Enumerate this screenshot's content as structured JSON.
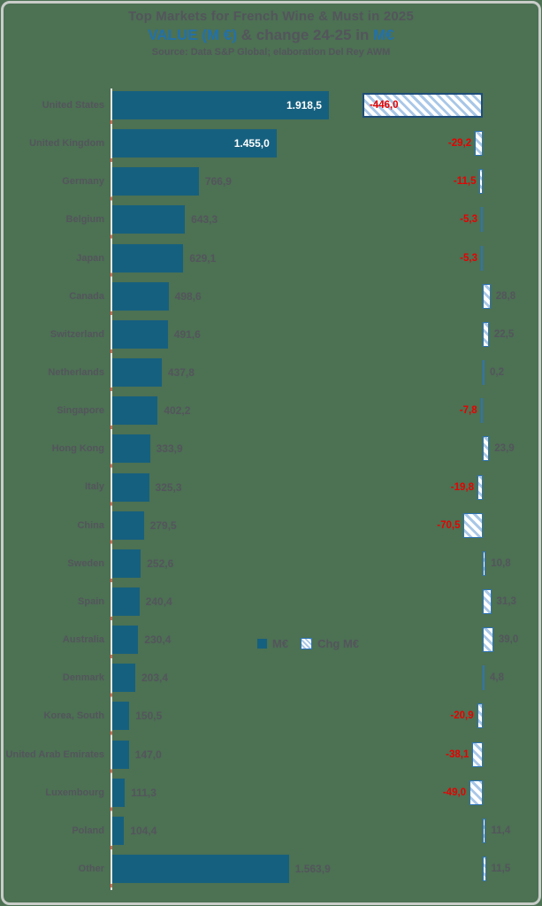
{
  "title": {
    "line1": "Top Markets for French  Wine & Must in 2025",
    "line2_value": "VALUE (M €)",
    "line2_mid": " & change 24-25 in ",
    "line2_unit": "M€",
    "source": "Source:  Data S&P Global; elaboration Del Rey AWM"
  },
  "legend": [
    {
      "label": "M€",
      "swatch": "solid"
    },
    {
      "label": "Chg M€",
      "swatch": "hatch"
    }
  ],
  "colors": {
    "background": "#4c7153",
    "frame_border": "#c9cdc9",
    "bar_blue": "#16607f",
    "accent_blue": "#2271ab",
    "negative_red": "#e80000",
    "text_gray": "#54555c",
    "hatch_stripe": "#a9c7e7",
    "hatch_border": "#2e74b5",
    "value_label_inside": "#ffffff"
  },
  "chart_data": {
    "type": "bar",
    "orientation": "horizontal",
    "title": "Top Markets for French Wine & Must in 2025",
    "subtitle": "VALUE (M €) & change 24-25 in M€",
    "source": "Source: Data S&P Global; elaboration Del Rey AWM",
    "legend_position": "middle-of-plot",
    "grid": false,
    "value_axis_range": [
      0,
      1950
    ],
    "change_axis_range": [
      -446,
      39
    ],
    "categories": [
      "United States",
      "United Kingdom",
      "Germany",
      "Belgium",
      "Japan",
      "Canada",
      "Switzerland",
      "Netherlands",
      "Singapore",
      "Hong Kong",
      "Italy",
      "China",
      "Sweden",
      "Spain",
      "Australia",
      "Denmark",
      "Korea, South",
      "United Arab Emirates",
      "Luxembourg",
      "Poland",
      "Other"
    ],
    "series": [
      {
        "name": "M€",
        "values": [
          1918.5,
          1455.0,
          766.9,
          643.3,
          629.1,
          498.6,
          491.6,
          437.8,
          402.2,
          333.9,
          325.3,
          279.5,
          252.6,
          240.4,
          230.4,
          203.4,
          150.5,
          147.0,
          111.3,
          104.4,
          1563.9
        ],
        "labels": [
          "1.918,5",
          "1.455,0",
          "766,9",
          "643,3",
          "629,1",
          "498,6",
          "491,6",
          "437,8",
          "402,2",
          "333,9",
          "325,3",
          "279,5",
          "252,6",
          "240,4",
          "230,4",
          "203,4",
          "150,5",
          "147,0",
          "111,3",
          "104,4",
          "1.563,9"
        ]
      },
      {
        "name": "Chg M€",
        "values": [
          -446.0,
          -29.2,
          -11.5,
          -5.3,
          -5.3,
          28.8,
          22.5,
          0.2,
          -7.8,
          23.9,
          -19.8,
          -70.5,
          10.8,
          31.3,
          39.0,
          4.8,
          -20.9,
          -38.1,
          -49.0,
          11.4,
          11.5
        ],
        "labels": [
          "-446,0",
          "-29,2",
          "-11,5",
          "-5,3",
          "-5,3",
          "28,8",
          "22,5",
          "0,2",
          "-7,8",
          "23,9",
          "-19,8",
          "-70,5",
          "10,8",
          "31,3",
          "39,0",
          "4,8",
          "-20,9",
          "-38,1",
          "-49,0",
          "11,4",
          "11,5"
        ]
      }
    ],
    "value_labels_inside_bar": [
      "United States",
      "United Kingdom"
    ],
    "change_label_inside_bar": [
      "United States"
    ]
  }
}
